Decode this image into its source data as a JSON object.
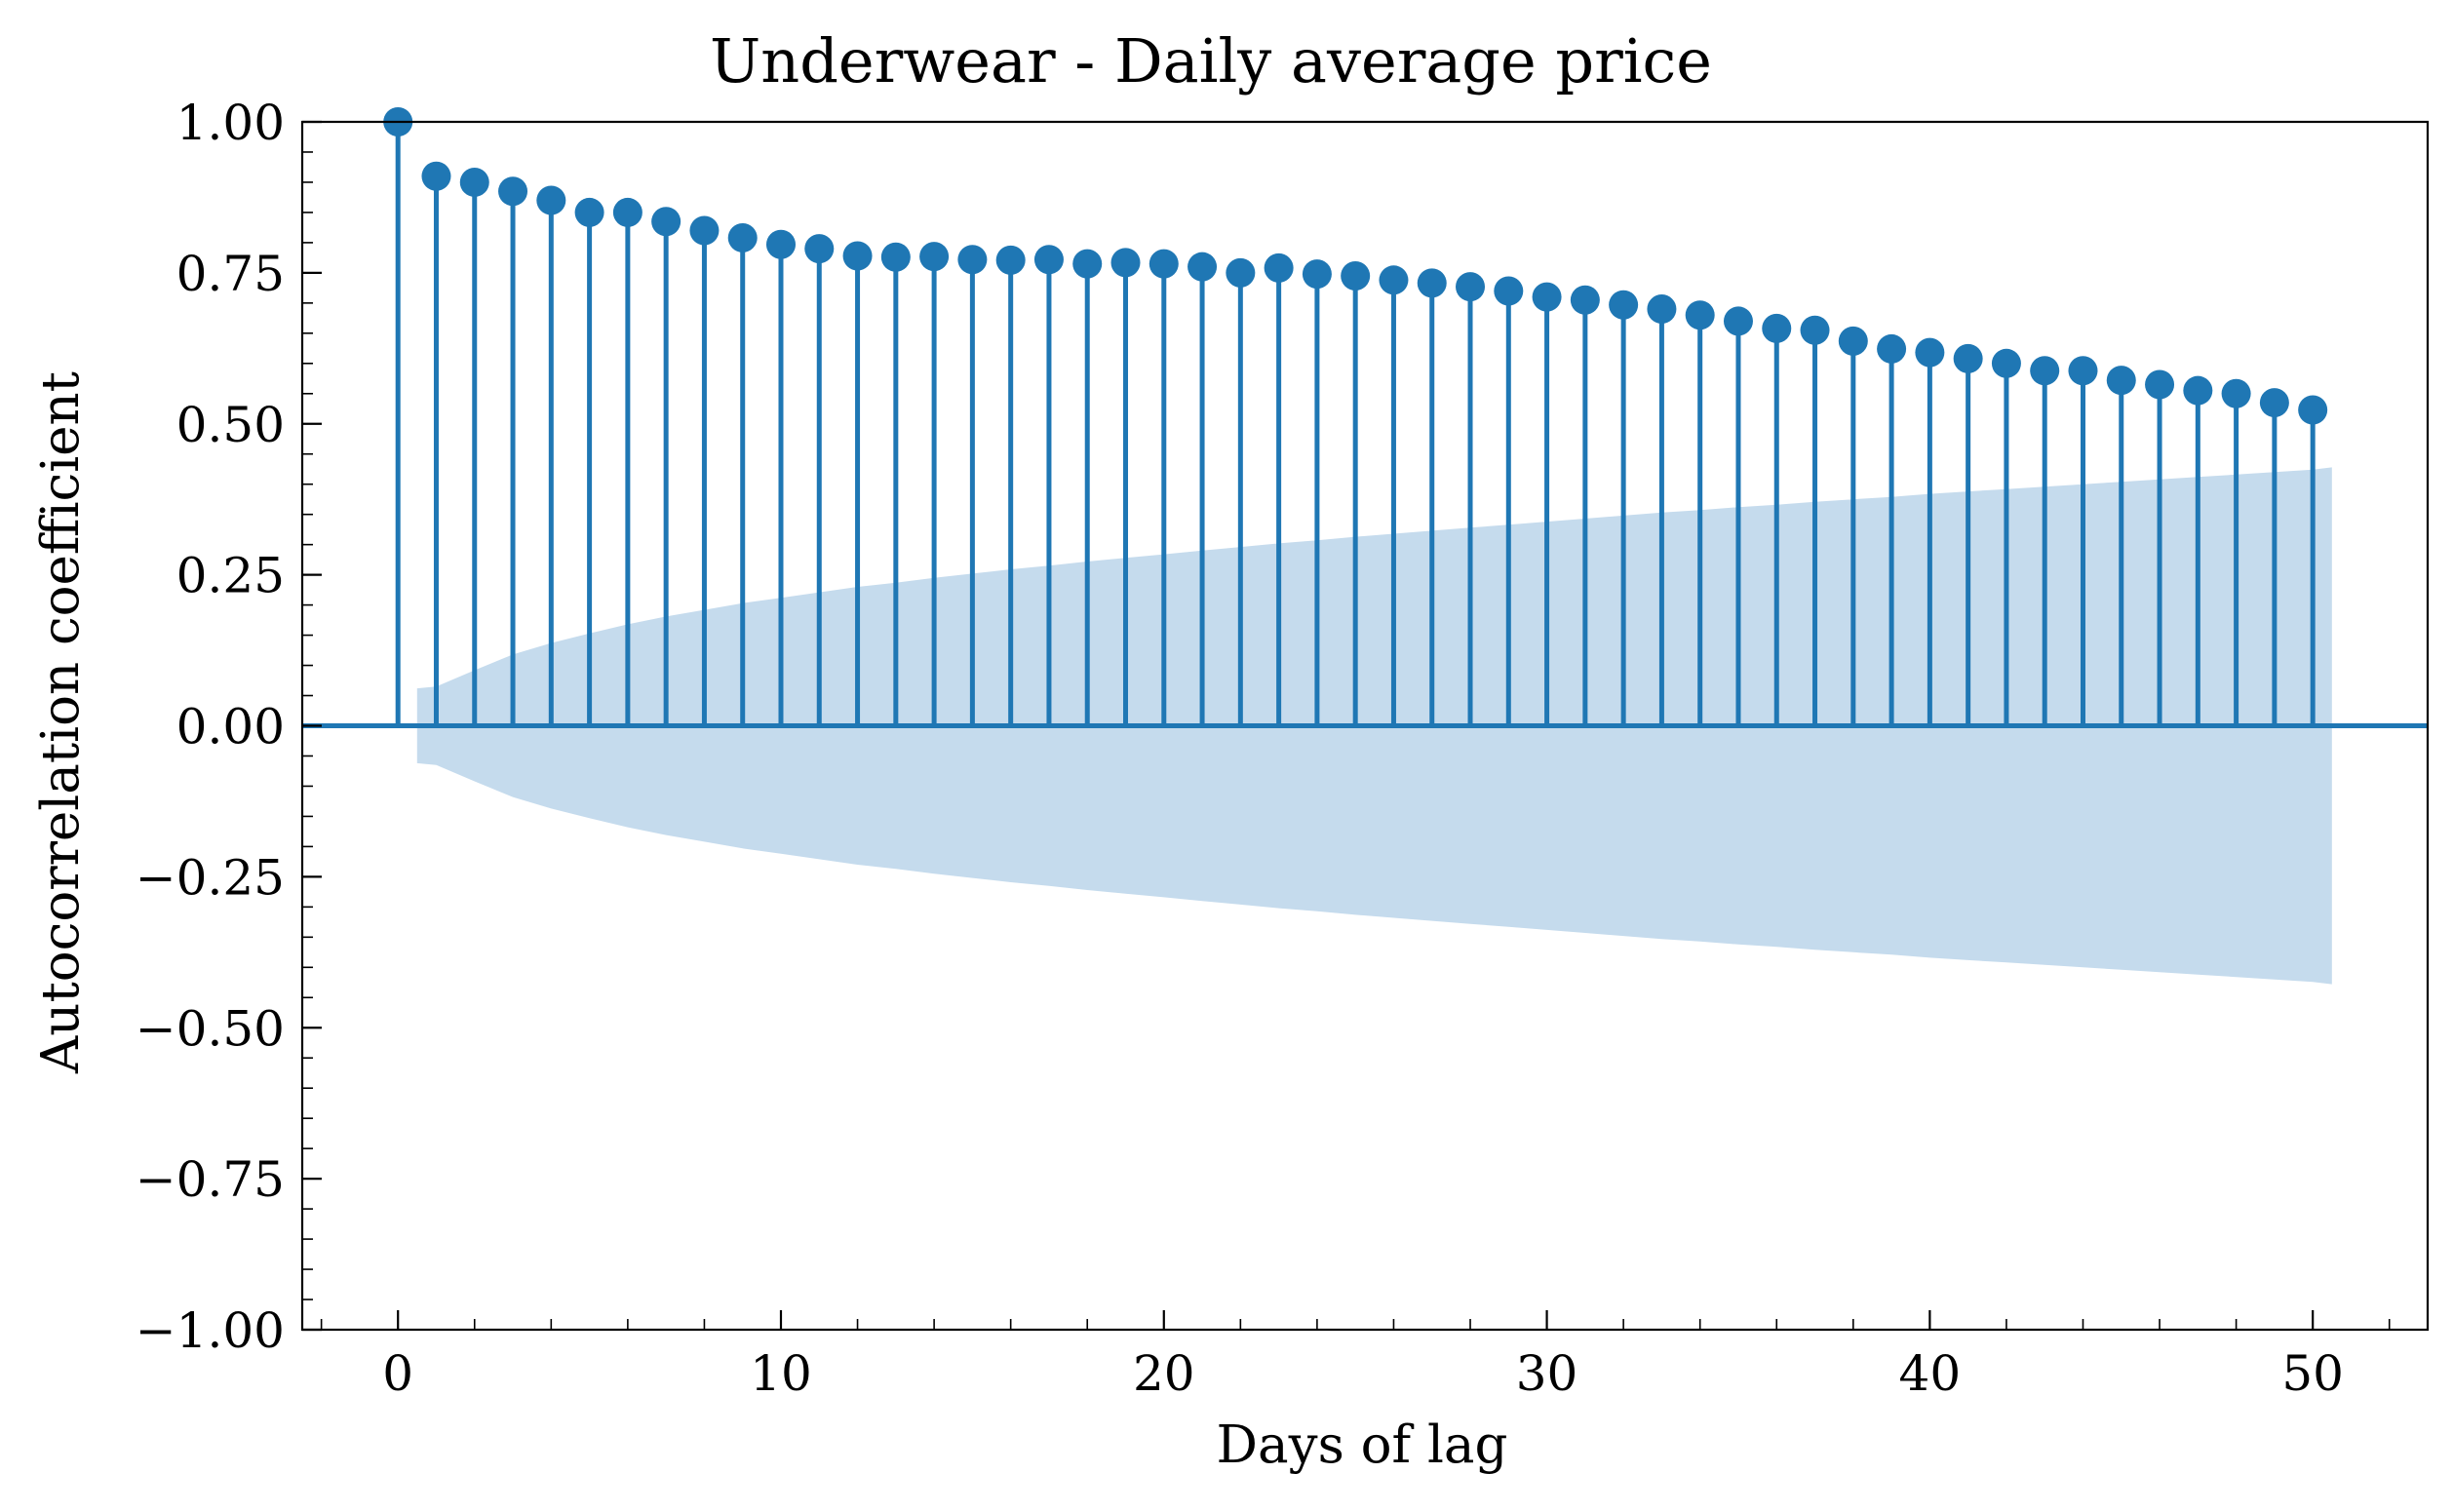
{
  "chart_data": {
    "type": "stem",
    "title": "Underwear - Daily average price",
    "xlabel": "Days of lag",
    "ylabel": "Autocorrelation coefficient",
    "xlim": [
      -2.5,
      53
    ],
    "ylim": [
      -1.0,
      1.0
    ],
    "xticks": [
      0,
      10,
      20,
      30,
      40,
      50
    ],
    "xtick_labels": [
      "0",
      "10",
      "20",
      "30",
      "40",
      "50"
    ],
    "yticks": [
      -1.0,
      -0.75,
      -0.5,
      -0.25,
      0.0,
      0.25,
      0.5,
      0.75,
      1.0
    ],
    "ytick_labels": [
      "−1.00",
      "−0.75",
      "−0.50",
      "−0.25",
      "0.00",
      "0.25",
      "0.50",
      "0.75",
      "1.00"
    ],
    "grid": false,
    "series": [
      {
        "lags": [
          0,
          1,
          2,
          3,
          4,
          5,
          6,
          7,
          8,
          9,
          10,
          11,
          12,
          13,
          14,
          15,
          16,
          17,
          18,
          19,
          20,
          21,
          22,
          23,
          24,
          25,
          26,
          27,
          28,
          29,
          30,
          31,
          32,
          33,
          34,
          35,
          36,
          37,
          38,
          39,
          40,
          41,
          42,
          43,
          44,
          45,
          46,
          47,
          48,
          49,
          50
        ],
        "values": [
          1.0,
          0.91,
          0.9,
          0.885,
          0.87,
          0.85,
          0.85,
          0.835,
          0.82,
          0.808,
          0.797,
          0.79,
          0.778,
          0.776,
          0.777,
          0.772,
          0.771,
          0.772,
          0.765,
          0.767,
          0.765,
          0.76,
          0.75,
          0.758,
          0.748,
          0.745,
          0.738,
          0.733,
          0.727,
          0.72,
          0.71,
          0.705,
          0.697,
          0.69,
          0.68,
          0.67,
          0.658,
          0.655,
          0.637,
          0.624,
          0.618,
          0.608,
          0.6,
          0.588,
          0.588,
          0.572,
          0.565,
          0.555,
          0.55,
          0.535,
          0.523
        ],
        "color": "#1f77b4"
      }
    ],
    "confidence_band": {
      "x": [
        0.5,
        1,
        2,
        3,
        4,
        5,
        6,
        7,
        8,
        9,
        10,
        11,
        12,
        13,
        14,
        15,
        16,
        17,
        18,
        19,
        20,
        21,
        22,
        23,
        24,
        25,
        26,
        27,
        28,
        29,
        30,
        31,
        32,
        33,
        34,
        35,
        36,
        37,
        38,
        39,
        40,
        41,
        42,
        43,
        44,
        45,
        46,
        47,
        48,
        49,
        50,
        50.5
      ],
      "upper": [
        0.062,
        0.065,
        0.092,
        0.118,
        0.137,
        0.153,
        0.168,
        0.181,
        0.192,
        0.203,
        0.212,
        0.221,
        0.23,
        0.237,
        0.245,
        0.252,
        0.259,
        0.265,
        0.272,
        0.278,
        0.284,
        0.29,
        0.296,
        0.302,
        0.307,
        0.313,
        0.318,
        0.323,
        0.328,
        0.333,
        0.338,
        0.343,
        0.348,
        0.353,
        0.357,
        0.362,
        0.366,
        0.371,
        0.375,
        0.379,
        0.384,
        0.388,
        0.392,
        0.396,
        0.4,
        0.404,
        0.408,
        0.412,
        0.416,
        0.42,
        0.424,
        0.428
      ],
      "color": "#c5dbed"
    }
  }
}
